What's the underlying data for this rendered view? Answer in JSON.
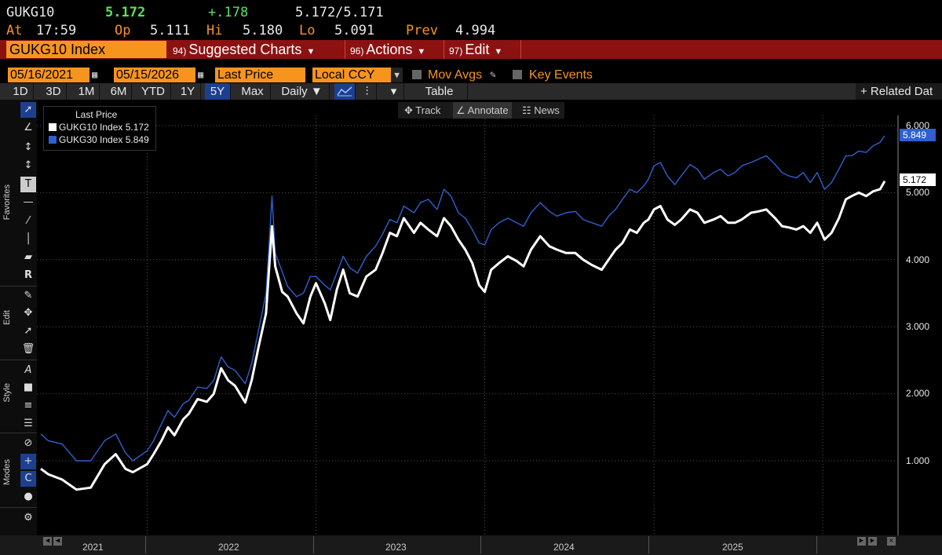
{
  "quote": {
    "ticker": "GUKG10",
    "last": "5.172",
    "change": "+.178",
    "bid_ask": "5.172/5.171",
    "at_label": "At",
    "time": "17:59",
    "op_label": "Op",
    "open": "5.111",
    "hi_label": "Hi",
    "high": "5.180",
    "lo_label": "Lo",
    "low": "5.091",
    "prev_label": "Prev",
    "prev": "4.994"
  },
  "menubar": {
    "security": "GUKG10 Index",
    "items": [
      {
        "num": "94)",
        "label": "Suggested Charts"
      },
      {
        "num": "96)",
        "label": "Actions"
      },
      {
        "num": "97)",
        "label": "Edit"
      }
    ]
  },
  "controls": {
    "start_date": "05/16/2021",
    "end_date": "05/15/2026",
    "field": "Last Price",
    "currency": "Local CCY",
    "mov_avgs": "Mov Avgs",
    "key_events": "Key Events"
  },
  "toolbar": {
    "periods": [
      "1D",
      "3D",
      "1M",
      "6M",
      "YTD",
      "1Y",
      "5Y",
      "Max"
    ],
    "active_period": "5Y",
    "frequency": "Daily",
    "table": "Table",
    "related": "+ Related Dat"
  },
  "subtoolbar": {
    "track": "Track",
    "annotate": "Annotate",
    "news": "News"
  },
  "sidebar": {
    "favorites": "Favorites",
    "edit": "Edit",
    "style": "Style",
    "modes": "Modes"
  },
  "colors": {
    "orange": "#f7941d",
    "menu_red": "#8c1212",
    "series_white": "#ffffff",
    "series_blue": "#2f5fd0",
    "change_green": "#5ee05e"
  },
  "chart_data": {
    "type": "line",
    "legend_title": "Last Price",
    "legend_position": "top-left",
    "grid": true,
    "grid_style": "dotted",
    "ylim": [
      0.0,
      6.2
    ],
    "yticks": [
      "6.000",
      "5.000",
      "4.000",
      "3.000",
      "2.000",
      "1.000"
    ],
    "xlabels": [
      "2021",
      "2022",
      "2023",
      "2024",
      "2025"
    ],
    "x_start": "2021-05-16",
    "x_end": "2026-05-15",
    "series": [
      {
        "name": "GUKG10 Index",
        "last": "5.172",
        "color": "#ffffff",
        "points": [
          [
            "2021-05-16",
            0.88
          ],
          [
            "2021-06-01",
            0.8
          ],
          [
            "2021-07-01",
            0.72
          ],
          [
            "2021-08-01",
            0.57
          ],
          [
            "2021-09-01",
            0.6
          ],
          [
            "2021-10-01",
            0.95
          ],
          [
            "2021-10-25",
            1.1
          ],
          [
            "2021-11-15",
            0.88
          ],
          [
            "2021-12-01",
            0.83
          ],
          [
            "2022-01-01",
            0.95
          ],
          [
            "2022-01-15",
            1.1
          ],
          [
            "2022-02-01",
            1.3
          ],
          [
            "2022-02-15",
            1.5
          ],
          [
            "2022-03-01",
            1.38
          ],
          [
            "2022-03-20",
            1.62
          ],
          [
            "2022-04-01",
            1.7
          ],
          [
            "2022-04-20",
            1.92
          ],
          [
            "2022-05-10",
            1.88
          ],
          [
            "2022-05-25",
            2.0
          ],
          [
            "2022-06-10",
            2.38
          ],
          [
            "2022-06-25",
            2.2
          ],
          [
            "2022-07-10",
            2.12
          ],
          [
            "2022-08-01",
            1.87
          ],
          [
            "2022-08-15",
            2.2
          ],
          [
            "2022-08-30",
            2.7
          ],
          [
            "2022-09-15",
            3.2
          ],
          [
            "2022-09-28",
            4.5
          ],
          [
            "2022-10-05",
            3.9
          ],
          [
            "2022-10-20",
            3.52
          ],
          [
            "2022-11-01",
            3.45
          ],
          [
            "2022-11-20",
            3.2
          ],
          [
            "2022-12-05",
            3.05
          ],
          [
            "2022-12-20",
            3.45
          ],
          [
            "2023-01-01",
            3.65
          ],
          [
            "2023-01-20",
            3.35
          ],
          [
            "2023-02-01",
            3.1
          ],
          [
            "2023-02-15",
            3.55
          ],
          [
            "2023-03-01",
            3.85
          ],
          [
            "2023-03-15",
            3.5
          ],
          [
            "2023-04-01",
            3.45
          ],
          [
            "2023-04-20",
            3.75
          ],
          [
            "2023-05-10",
            3.85
          ],
          [
            "2023-05-25",
            4.1
          ],
          [
            "2023-06-10",
            4.4
          ],
          [
            "2023-06-25",
            4.35
          ],
          [
            "2023-07-10",
            4.62
          ],
          [
            "2023-08-01",
            4.4
          ],
          [
            "2023-08-15",
            4.55
          ],
          [
            "2023-09-01",
            4.45
          ],
          [
            "2023-09-20",
            4.35
          ],
          [
            "2023-10-05",
            4.62
          ],
          [
            "2023-10-20",
            4.5
          ],
          [
            "2023-11-05",
            4.3
          ],
          [
            "2023-11-20",
            4.15
          ],
          [
            "2023-12-05",
            3.95
          ],
          [
            "2023-12-20",
            3.62
          ],
          [
            "2024-01-01",
            3.52
          ],
          [
            "2024-01-15",
            3.85
          ],
          [
            "2024-02-01",
            3.95
          ],
          [
            "2024-02-20",
            4.05
          ],
          [
            "2024-03-10",
            3.98
          ],
          [
            "2024-03-25",
            3.9
          ],
          [
            "2024-04-10",
            4.15
          ],
          [
            "2024-04-30",
            4.35
          ],
          [
            "2024-05-20",
            4.2
          ],
          [
            "2024-06-05",
            4.15
          ],
          [
            "2024-06-25",
            4.1
          ],
          [
            "2024-07-15",
            4.1
          ],
          [
            "2024-08-01",
            4.0
          ],
          [
            "2024-08-20",
            3.92
          ],
          [
            "2024-09-10",
            3.85
          ],
          [
            "2024-09-25",
            4.0
          ],
          [
            "2024-10-10",
            4.15
          ],
          [
            "2024-10-25",
            4.25
          ],
          [
            "2024-11-10",
            4.45
          ],
          [
            "2024-11-25",
            4.4
          ],
          [
            "2024-12-10",
            4.55
          ],
          [
            "2024-12-20",
            4.6
          ],
          [
            "2025-01-01",
            4.75
          ],
          [
            "2025-01-15",
            4.8
          ],
          [
            "2025-01-30",
            4.6
          ],
          [
            "2025-02-15",
            4.52
          ],
          [
            "2025-03-01",
            4.6
          ],
          [
            "2025-03-20",
            4.75
          ],
          [
            "2025-04-05",
            4.7
          ],
          [
            "2025-04-20",
            4.55
          ],
          [
            "2025-05-10",
            4.6
          ],
          [
            "2025-05-25",
            4.65
          ],
          [
            "2025-06-10",
            4.55
          ],
          [
            "2025-06-25",
            4.55
          ],
          [
            "2025-07-10",
            4.6
          ],
          [
            "2025-07-30",
            4.7
          ],
          [
            "2025-08-15",
            4.72
          ],
          [
            "2025-09-01",
            4.75
          ],
          [
            "2025-09-20",
            4.62
          ],
          [
            "2025-10-05",
            4.5
          ],
          [
            "2025-10-20",
            4.48
          ],
          [
            "2025-11-05",
            4.45
          ],
          [
            "2025-11-20",
            4.5
          ],
          [
            "2025-12-05",
            4.4
          ],
          [
            "2025-12-20",
            4.55
          ],
          [
            "2026-01-05",
            4.3
          ],
          [
            "2026-01-20",
            4.4
          ],
          [
            "2026-02-05",
            4.62
          ],
          [
            "2026-02-20",
            4.9
          ],
          [
            "2026-03-05",
            4.95
          ],
          [
            "2026-03-20",
            5.0
          ],
          [
            "2026-04-05",
            4.95
          ],
          [
            "2026-04-20",
            5.02
          ],
          [
            "2026-05-05",
            5.05
          ],
          [
            "2026-05-15",
            5.172
          ]
        ]
      },
      {
        "name": "GUKG30 Index",
        "last": "5.849",
        "color": "#2f5fd0",
        "points": [
          [
            "2021-05-16",
            1.4
          ],
          [
            "2021-06-01",
            1.3
          ],
          [
            "2021-07-01",
            1.25
          ],
          [
            "2021-08-01",
            1.0
          ],
          [
            "2021-09-01",
            1.0
          ],
          [
            "2021-10-01",
            1.3
          ],
          [
            "2021-10-25",
            1.4
          ],
          [
            "2021-11-15",
            1.12
          ],
          [
            "2021-12-01",
            1.0
          ],
          [
            "2022-01-01",
            1.15
          ],
          [
            "2022-01-15",
            1.3
          ],
          [
            "2022-02-01",
            1.55
          ],
          [
            "2022-02-15",
            1.75
          ],
          [
            "2022-03-01",
            1.65
          ],
          [
            "2022-03-20",
            1.85
          ],
          [
            "2022-04-01",
            1.9
          ],
          [
            "2022-04-20",
            2.1
          ],
          [
            "2022-05-10",
            2.08
          ],
          [
            "2022-05-25",
            2.2
          ],
          [
            "2022-06-10",
            2.55
          ],
          [
            "2022-06-25",
            2.4
          ],
          [
            "2022-07-10",
            2.35
          ],
          [
            "2022-08-01",
            2.15
          ],
          [
            "2022-08-15",
            2.45
          ],
          [
            "2022-08-30",
            2.95
          ],
          [
            "2022-09-15",
            3.5
          ],
          [
            "2022-09-28",
            4.95
          ],
          [
            "2022-10-05",
            4.1
          ],
          [
            "2022-10-20",
            3.82
          ],
          [
            "2022-11-01",
            3.6
          ],
          [
            "2022-11-20",
            3.45
          ],
          [
            "2022-12-05",
            3.5
          ],
          [
            "2022-12-20",
            3.75
          ],
          [
            "2023-01-01",
            3.75
          ],
          [
            "2023-01-20",
            3.62
          ],
          [
            "2023-02-01",
            3.55
          ],
          [
            "2023-02-15",
            3.8
          ],
          [
            "2023-03-01",
            4.05
          ],
          [
            "2023-03-15",
            3.88
          ],
          [
            "2023-04-01",
            3.8
          ],
          [
            "2023-04-20",
            4.05
          ],
          [
            "2023-05-10",
            4.2
          ],
          [
            "2023-05-25",
            4.38
          ],
          [
            "2023-06-10",
            4.6
          ],
          [
            "2023-06-25",
            4.55
          ],
          [
            "2023-07-10",
            4.8
          ],
          [
            "2023-08-01",
            4.7
          ],
          [
            "2023-08-15",
            4.85
          ],
          [
            "2023-09-01",
            4.9
          ],
          [
            "2023-09-20",
            4.75
          ],
          [
            "2023-10-05",
            5.05
          ],
          [
            "2023-10-20",
            4.95
          ],
          [
            "2023-11-05",
            4.7
          ],
          [
            "2023-11-20",
            4.62
          ],
          [
            "2023-12-05",
            4.45
          ],
          [
            "2023-12-20",
            4.25
          ],
          [
            "2024-01-01",
            4.22
          ],
          [
            "2024-01-15",
            4.45
          ],
          [
            "2024-02-01",
            4.55
          ],
          [
            "2024-02-20",
            4.62
          ],
          [
            "2024-03-10",
            4.55
          ],
          [
            "2024-03-25",
            4.5
          ],
          [
            "2024-04-10",
            4.7
          ],
          [
            "2024-04-30",
            4.85
          ],
          [
            "2024-05-20",
            4.72
          ],
          [
            "2024-06-05",
            4.65
          ],
          [
            "2024-06-25",
            4.7
          ],
          [
            "2024-07-15",
            4.72
          ],
          [
            "2024-08-01",
            4.6
          ],
          [
            "2024-08-20",
            4.55
          ],
          [
            "2024-09-10",
            4.5
          ],
          [
            "2024-09-25",
            4.65
          ],
          [
            "2024-10-10",
            4.75
          ],
          [
            "2024-10-25",
            4.9
          ],
          [
            "2024-11-10",
            5.05
          ],
          [
            "2024-11-25",
            5.0
          ],
          [
            "2024-12-10",
            5.1
          ],
          [
            "2024-12-20",
            5.2
          ],
          [
            "2025-01-01",
            5.4
          ],
          [
            "2025-01-15",
            5.45
          ],
          [
            "2025-01-30",
            5.25
          ],
          [
            "2025-02-15",
            5.12
          ],
          [
            "2025-03-01",
            5.25
          ],
          [
            "2025-03-20",
            5.42
          ],
          [
            "2025-04-05",
            5.35
          ],
          [
            "2025-04-20",
            5.2
          ],
          [
            "2025-05-10",
            5.3
          ],
          [
            "2025-05-25",
            5.35
          ],
          [
            "2025-06-10",
            5.25
          ],
          [
            "2025-06-25",
            5.3
          ],
          [
            "2025-07-10",
            5.4
          ],
          [
            "2025-07-30",
            5.45
          ],
          [
            "2025-08-15",
            5.5
          ],
          [
            "2025-09-01",
            5.55
          ],
          [
            "2025-09-20",
            5.42
          ],
          [
            "2025-10-05",
            5.3
          ],
          [
            "2025-10-20",
            5.25
          ],
          [
            "2025-11-05",
            5.22
          ],
          [
            "2025-11-20",
            5.3
          ],
          [
            "2025-12-05",
            5.15
          ],
          [
            "2025-12-20",
            5.3
          ],
          [
            "2026-01-05",
            5.05
          ],
          [
            "2026-01-20",
            5.15
          ],
          [
            "2026-02-05",
            5.35
          ],
          [
            "2026-02-20",
            5.55
          ],
          [
            "2026-03-05",
            5.55
          ],
          [
            "2026-03-20",
            5.62
          ],
          [
            "2026-04-05",
            5.6
          ],
          [
            "2026-04-20",
            5.7
          ],
          [
            "2026-05-05",
            5.75
          ],
          [
            "2026-05-15",
            5.849
          ]
        ]
      }
    ]
  }
}
